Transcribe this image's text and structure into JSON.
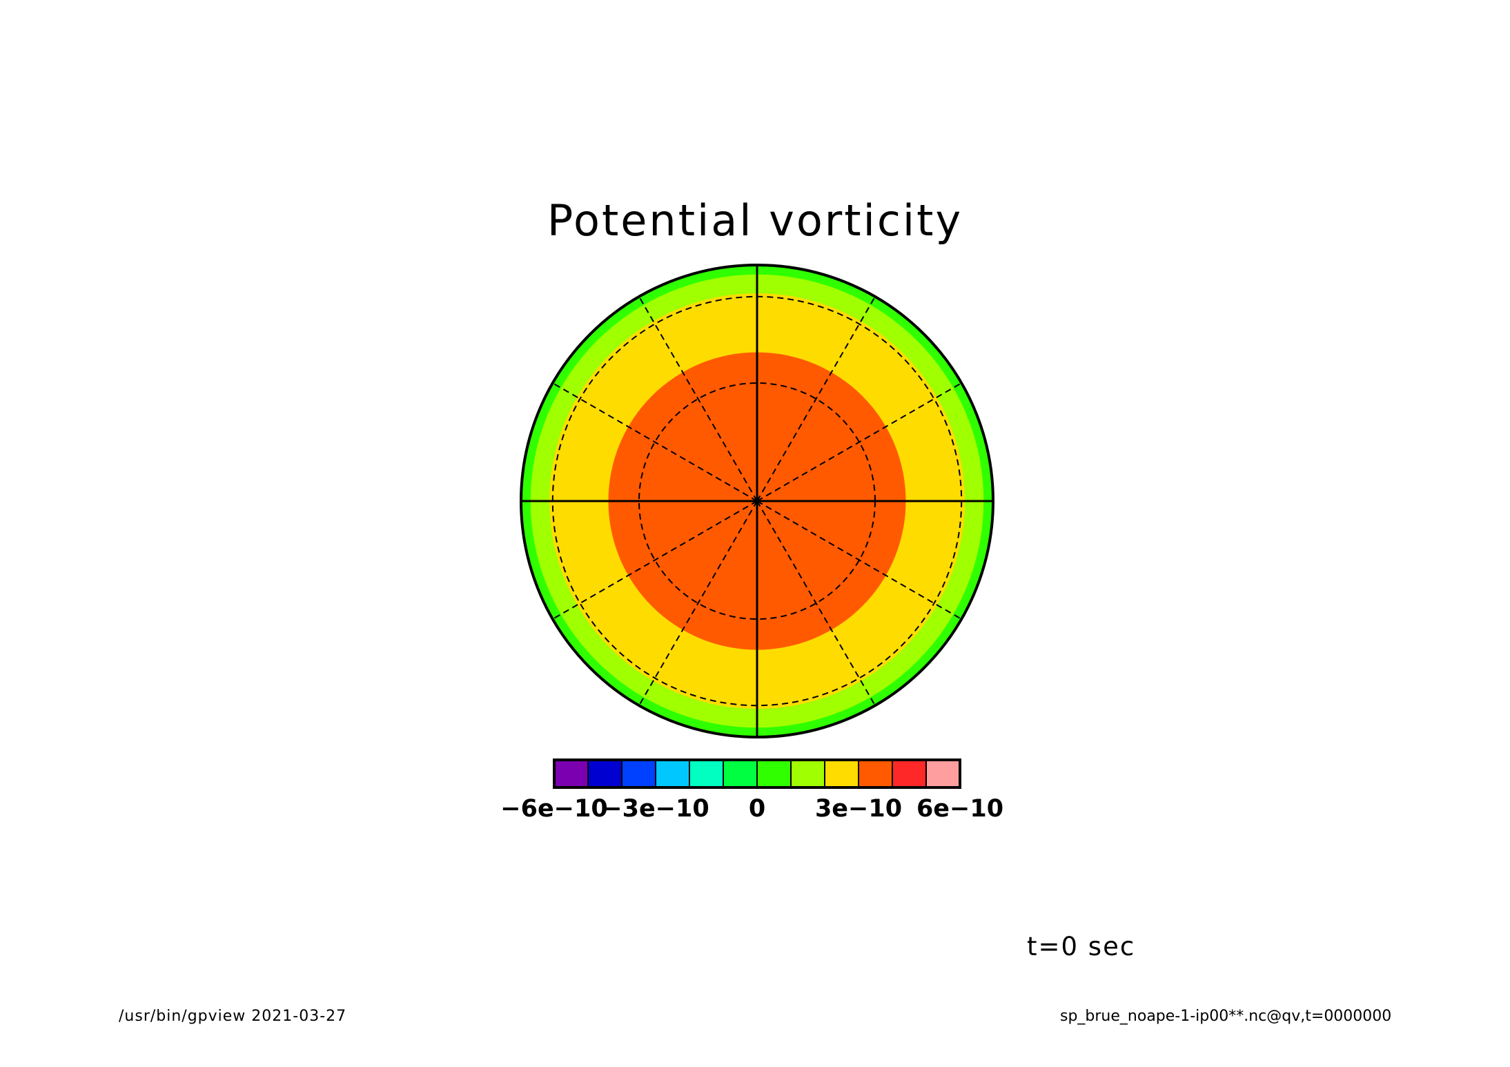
{
  "chart_data": {
    "type": "heatmap",
    "projection": "polar",
    "title": "Potential vorticity",
    "annotation": "t=0 sec",
    "grid": true,
    "colorbar": {
      "placement": "bottom",
      "levels": [
        -6e-10,
        -5e-10,
        -4e-10,
        -3e-10,
        -2e-10,
        -1e-10,
        0,
        1e-10,
        2e-10,
        3e-10,
        4e-10,
        5e-10,
        6e-10
      ],
      "colors": [
        "#7A00B0",
        "#0000D0",
        "#0040FF",
        "#00C8FF",
        "#00FFC0",
        "#00FF40",
        "#30FF00",
        "#A0FF00",
        "#FFDC00",
        "#FF5A00",
        "#FF2828",
        "#FF9E9E"
      ],
      "tick_labels": [
        {
          "value": -6e-10,
          "label": "−6e−10"
        },
        {
          "value": -3e-10,
          "label": "−3e−10"
        },
        {
          "value": 0,
          "label": "0"
        },
        {
          "value": 3e-10,
          "label": "3e−10"
        },
        {
          "value": 6e-10,
          "label": "6e−10"
        }
      ]
    },
    "bands": [
      {
        "from_radius": 0.0,
        "to_radius": 0.63,
        "color": "#FF5A00"
      },
      {
        "from_radius": 0.63,
        "to_radius": 0.88,
        "color": "#FFDC00"
      },
      {
        "from_radius": 0.88,
        "to_radius": 0.96,
        "color": "#A0FF00"
      },
      {
        "from_radius": 0.96,
        "to_radius": 1.0,
        "color": "#30FF00"
      }
    ],
    "grid_circles": [
      0.5,
      0.866
    ],
    "meridian_step_deg": 30
  },
  "footer": {
    "left": "/usr/bin/gpview  2021-03-27",
    "right": "sp_brue_noape-1-ip00**.nc@qv,t=0000000"
  }
}
